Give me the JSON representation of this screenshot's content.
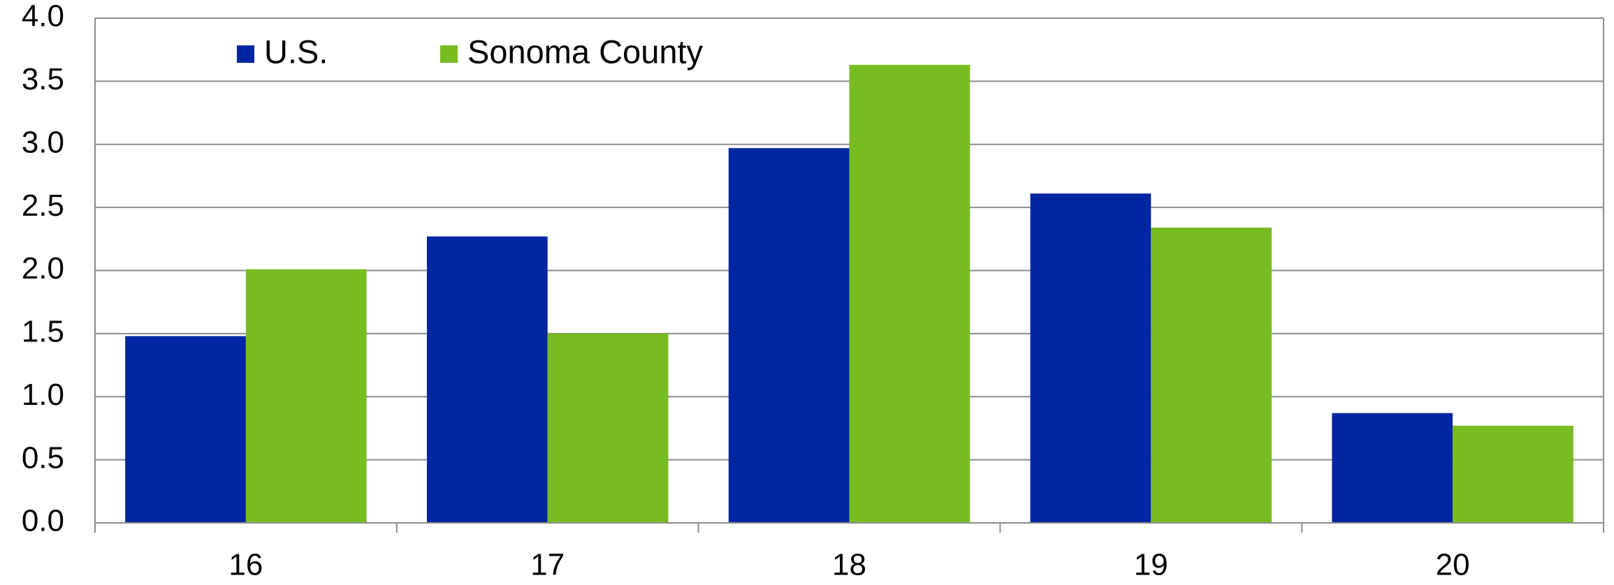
{
  "chart_data": {
    "type": "bar",
    "categories": [
      "16",
      "17",
      "18",
      "19",
      "20"
    ],
    "series": [
      {
        "name": "U.S.",
        "color": "#0026a3",
        "values": [
          1.48,
          2.27,
          2.97,
          2.61,
          0.87
        ]
      },
      {
        "name": "Sonoma County",
        "color": "#77bc21",
        "values": [
          2.01,
          1.5,
          3.63,
          2.34,
          0.77
        ]
      }
    ],
    "ylim": [
      0,
      4
    ],
    "yticks": [
      {
        "value": 0,
        "label": "0.0"
      },
      0.5,
      {
        "value": 1,
        "label": "1.0"
      },
      1.5,
      {
        "value": 2,
        "label": "2.0"
      },
      2.5,
      {
        "value": 3,
        "label": "3.0"
      },
      3.5,
      {
        "value": 4,
        "label": "4.0"
      }
    ],
    "grid": true,
    "legend": "top-left"
  }
}
